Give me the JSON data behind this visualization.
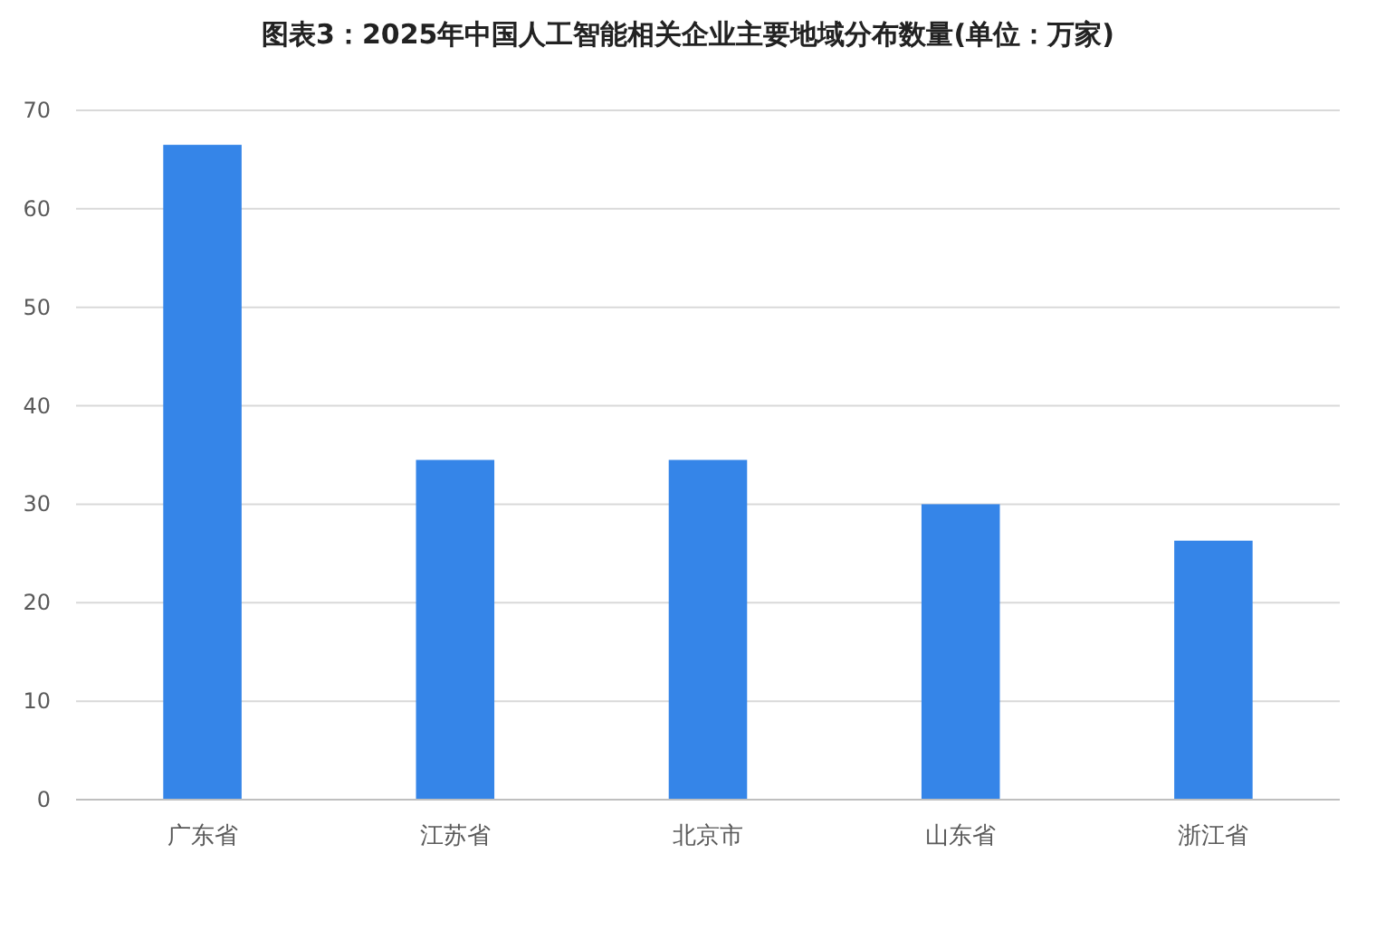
{
  "chart_data": {
    "type": "bar",
    "title": "图表3：2025年中国人工智能相关企业主要地域分布数量(单位：万家)",
    "categories": [
      "广东省",
      "江苏省",
      "北京市",
      "山东省",
      "浙江省"
    ],
    "values": [
      66.5,
      34.5,
      34.5,
      30,
      26.3
    ],
    "color": "#3585e8",
    "ylim": [
      0,
      70
    ],
    "yticks": [
      0,
      10,
      20,
      30,
      40,
      50,
      60,
      70
    ],
    "grid": "y"
  }
}
